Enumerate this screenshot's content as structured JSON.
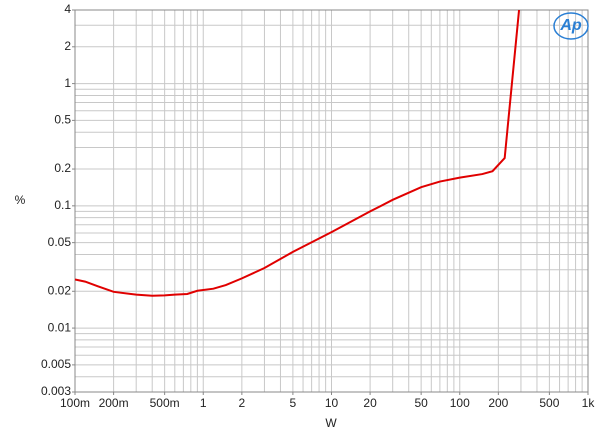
{
  "chart_data": {
    "type": "line",
    "logo": "Ap",
    "xlabel": "W",
    "ylabel": "%",
    "xscale": "log",
    "yscale": "log",
    "grid": true,
    "xlim": [
      0.1,
      1000
    ],
    "ylim": [
      0.003,
      4
    ],
    "xticks": [
      {
        "value": 0.1,
        "label": "100m"
      },
      {
        "value": 0.2,
        "label": "200m"
      },
      {
        "value": 0.5,
        "label": "500m"
      },
      1,
      2,
      5,
      10,
      20,
      50,
      100,
      200,
      500,
      {
        "value": 1000,
        "label": "1k"
      }
    ],
    "yticks": [
      0.003,
      0.005,
      0.01,
      0.02,
      0.05,
      0.1,
      0.2,
      0.5,
      1,
      2,
      4
    ],
    "xgrid": [
      0.1,
      0.2,
      0.3,
      0.4,
      0.5,
      0.6,
      0.7,
      0.8,
      0.9,
      1,
      2,
      3,
      4,
      5,
      6,
      7,
      8,
      9,
      10,
      20,
      30,
      40,
      50,
      60,
      70,
      80,
      90,
      100,
      200,
      300,
      400,
      500,
      600,
      700,
      800,
      900,
      1000
    ],
    "ygrid": [
      0.003,
      0.004,
      0.005,
      0.006,
      0.007,
      0.008,
      0.009,
      0.01,
      0.02,
      0.03,
      0.04,
      0.05,
      0.06,
      0.07,
      0.08,
      0.09,
      0.1,
      0.2,
      0.3,
      0.4,
      0.5,
      0.6,
      0.7,
      0.8,
      0.9,
      1,
      2,
      3,
      4
    ],
    "series": [
      {
        "color": "#e00000",
        "x": [
          0.1,
          0.12,
          0.15,
          0.2,
          0.3,
          0.4,
          0.5,
          0.6,
          0.75,
          0.9,
          1.2,
          1.5,
          2,
          3,
          5,
          10,
          20,
          30,
          50,
          70,
          100,
          150,
          180,
          224,
          290
        ],
        "values": [
          0.025,
          0.024,
          0.022,
          0.0198,
          0.0188,
          0.0184,
          0.0185,
          0.0188,
          0.019,
          0.0202,
          0.021,
          0.0225,
          0.0255,
          0.031,
          0.042,
          0.061,
          0.09,
          0.112,
          0.142,
          0.158,
          0.17,
          0.182,
          0.192,
          0.246,
          4
        ]
      }
    ]
  }
}
